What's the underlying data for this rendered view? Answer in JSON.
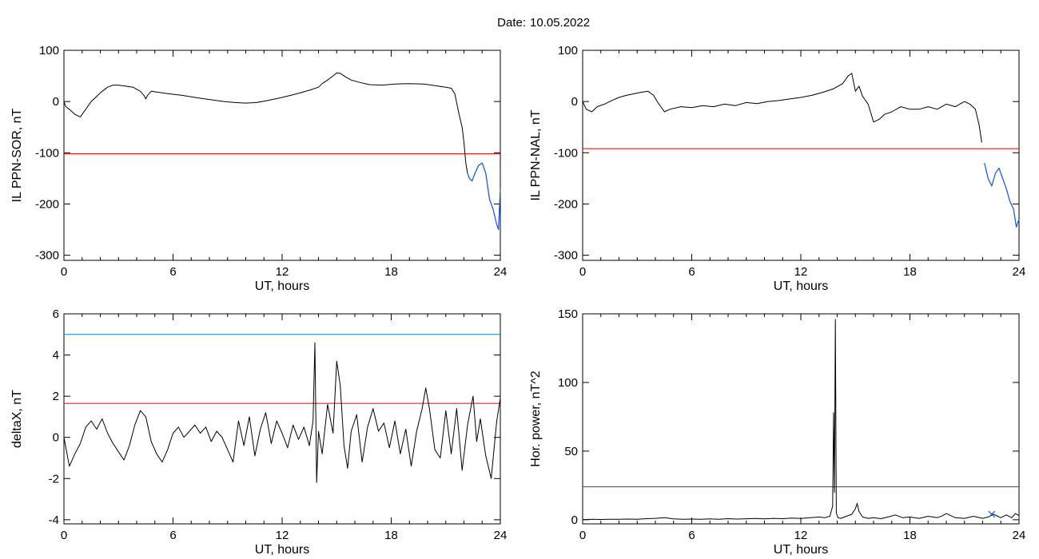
{
  "header": {
    "date_label": "Date:",
    "date_value": "10.05.2022"
  },
  "colors": {
    "trace": "#000000",
    "threshold": "#e00000",
    "highlight": "#1f5fd0",
    "upper_line": "#1f7fa8",
    "marker": "#1f5fd0"
  },
  "chart_data": [
    {
      "type": "line",
      "ylabel": "IL PPN-SOR, nT",
      "xlabel": "UT, hours",
      "xlim": [
        0,
        24
      ],
      "ylim": [
        -310,
        100
      ],
      "xticks": [
        0,
        6,
        12,
        18,
        24
      ],
      "yticks": [
        100,
        0,
        -100,
        -200,
        -300
      ],
      "xtick_labels": [
        "0",
        "6",
        "12",
        "18",
        "24"
      ],
      "ytick_labels": [
        "100",
        "0",
        "-100",
        "-200",
        "-300"
      ],
      "grid": false,
      "hlines": [
        {
          "y": -102,
          "color": "threshold"
        }
      ],
      "series": [
        {
          "x": [
            0,
            0.1,
            0.3,
            0.6,
            0.9,
            1.2,
            1.5,
            1.8,
            2.1,
            2.4,
            2.7,
            3.0,
            3.4,
            3.8,
            4.2,
            4.4,
            4.5,
            4.6,
            4.8,
            5.2,
            5.8,
            6.5,
            7.2,
            8.0,
            8.8,
            9.4,
            10.0,
            10.6,
            11.2,
            12.0,
            12.8,
            13.5,
            14.0,
            14.2,
            14.5,
            14.8,
            15.0,
            15.2,
            15.5,
            15.8,
            16.2,
            16.8,
            17.5,
            18.2,
            19.0,
            19.8,
            20.6,
            21.0,
            21.3,
            21.5,
            21.7,
            21.9,
            22.0,
            22.1,
            22.2,
            22.3,
            22.45,
            22.6,
            22.8,
            23.0,
            23.2,
            23.4,
            23.6,
            23.8,
            23.9,
            24.0
          ],
          "y": [
            0,
            -10,
            -15,
            -25,
            -30,
            -15,
            0,
            10,
            20,
            28,
            32,
            32,
            30,
            28,
            20,
            12,
            5,
            12,
            20,
            18,
            15,
            12,
            8,
            4,
            0,
            -2,
            -3,
            -2,
            2,
            8,
            15,
            22,
            28,
            35,
            42,
            50,
            56,
            55,
            48,
            42,
            38,
            33,
            32,
            34,
            35,
            34,
            30,
            28,
            26,
            15,
            -20,
            -50,
            -80,
            -120,
            -140,
            -150,
            -155,
            -140,
            -125,
            -120,
            -140,
            -190,
            -210,
            -240,
            -250,
            -170
          ],
          "highlight_from_x": 22.2
        }
      ]
    },
    {
      "type": "line",
      "ylabel": "IL PPN-NAL, nT",
      "xlabel": "UT, hours",
      "xlim": [
        0,
        24
      ],
      "ylim": [
        -310,
        100
      ],
      "xticks": [
        0,
        6,
        12,
        18,
        24
      ],
      "yticks": [
        100,
        0,
        -100,
        -200,
        -300
      ],
      "xtick_labels": [
        "0",
        "6",
        "12",
        "18",
        "24"
      ],
      "ytick_labels": [
        "100",
        "0",
        "-100",
        "-200",
        "-300"
      ],
      "grid": false,
      "hlines": [
        {
          "y": -92,
          "color": "threshold"
        }
      ],
      "series": [
        {
          "x": [
            0,
            0.2,
            0.5,
            0.8,
            1.2,
            1.6,
            2.0,
            2.4,
            2.8,
            3.2,
            3.6,
            3.9,
            4.1,
            4.3,
            4.5,
            4.8,
            5.4,
            6.0,
            6.6,
            7.2,
            7.8,
            8.4,
            9.0,
            9.6,
            10.2,
            10.8,
            11.4,
            12.0,
            12.6,
            13.2,
            13.8,
            14.3,
            14.6,
            14.8,
            15.0,
            15.2,
            15.4,
            15.7,
            16.0,
            16.3,
            16.6,
            17.0,
            17.5,
            18.0,
            18.5,
            19.0,
            19.5,
            20.0,
            20.5,
            21.0,
            21.3,
            21.6,
            21.8,
            21.95,
            22.1,
            22.3,
            22.5,
            22.7,
            22.9,
            23.1,
            23.3,
            23.5,
            23.7,
            23.85,
            24.0
          ],
          "y": [
            0,
            -15,
            -20,
            -10,
            -5,
            2,
            8,
            12,
            15,
            18,
            20,
            12,
            0,
            -10,
            -20,
            -15,
            -10,
            -12,
            -8,
            -10,
            -5,
            -8,
            -2,
            -4,
            0,
            2,
            5,
            8,
            12,
            18,
            25,
            35,
            50,
            55,
            20,
            30,
            10,
            -5,
            -40,
            -35,
            -25,
            -20,
            -10,
            -15,
            -15,
            -10,
            -15,
            -5,
            -10,
            0,
            -5,
            -15,
            -45,
            -80,
            -120,
            -150,
            -165,
            -140,
            -130,
            -150,
            -170,
            -195,
            -210,
            -245,
            -230
          ],
          "highlight_from_x": 22.0
        }
      ]
    },
    {
      "type": "line",
      "ylabel": "deltaX, nT",
      "xlabel": "UT, hours",
      "xlim": [
        0,
        24
      ],
      "ylim": [
        -4.2,
        6
      ],
      "xticks": [
        0,
        6,
        12,
        18,
        24
      ],
      "yticks": [
        6,
        4,
        2,
        0,
        -2,
        -4
      ],
      "xtick_labels": [
        "0",
        "6",
        "12",
        "18",
        "24"
      ],
      "ytick_labels": [
        "6",
        "4",
        "2",
        "0",
        "-2",
        "-4"
      ],
      "grid": false,
      "hlines": [
        {
          "y": 5,
          "color": "upper_line"
        },
        {
          "y": 1.65,
          "color": "threshold"
        }
      ],
      "series": [
        {
          "x": [
            0,
            0.3,
            0.6,
            0.9,
            1.2,
            1.5,
            1.8,
            2.1,
            2.4,
            2.7,
            3.0,
            3.3,
            3.6,
            3.9,
            4.2,
            4.5,
            4.8,
            5.1,
            5.4,
            5.7,
            6.0,
            6.3,
            6.6,
            6.9,
            7.2,
            7.5,
            7.8,
            8.1,
            8.4,
            8.7,
            9.0,
            9.3,
            9.6,
            9.9,
            10.2,
            10.5,
            10.8,
            11.1,
            11.4,
            11.7,
            12.0,
            12.3,
            12.6,
            12.9,
            13.2,
            13.5,
            13.7,
            13.8,
            13.9,
            14.0,
            14.2,
            14.5,
            14.8,
            15.0,
            15.2,
            15.4,
            15.6,
            15.8,
            16.1,
            16.4,
            16.7,
            17.0,
            17.3,
            17.6,
            17.9,
            18.2,
            18.5,
            18.8,
            19.1,
            19.4,
            19.7,
            19.9,
            20.1,
            20.4,
            20.7,
            21.0,
            21.3,
            21.6,
            21.9,
            22.2,
            22.5,
            22.7,
            22.9,
            23.2,
            23.5,
            23.8,
            24.0
          ],
          "y": [
            0,
            -1.4,
            -0.8,
            -0.3,
            0.5,
            0.8,
            0.4,
            0.9,
            0.2,
            -0.3,
            -0.7,
            -1.1,
            -0.4,
            0.6,
            1.3,
            1.0,
            -0.2,
            -0.8,
            -1.2,
            -0.6,
            0.2,
            0.5,
            0.0,
            0.3,
            0.6,
            0.2,
            0.5,
            -0.2,
            0.3,
            0.0,
            -0.6,
            -1.2,
            0.8,
            -0.4,
            1.0,
            -0.9,
            0.4,
            1.2,
            -0.3,
            0.8,
            0.2,
            -0.5,
            0.6,
            -0.1,
            0.5,
            -0.4,
            0.8,
            4.6,
            -2.2,
            0.3,
            -0.8,
            1.6,
            0.2,
            3.7,
            2.5,
            -0.4,
            -1.5,
            0.3,
            1.1,
            -1.2,
            0.5,
            1.4,
            0.3,
            0.7,
            -0.5,
            0.8,
            -0.8,
            0.4,
            -1.4,
            0.3,
            1.4,
            2.4,
            1.4,
            -0.6,
            -1.0,
            1.3,
            -0.8,
            1.4,
            -1.6,
            0.6,
            2.0,
            -0.2,
            0.9,
            -0.9,
            -2.0,
            0.8,
            1.9
          ]
        }
      ]
    },
    {
      "type": "line",
      "ylabel": "Hor. power, nT^2",
      "xlabel": "UT, hours",
      "xlim": [
        0,
        24
      ],
      "ylim": [
        -3,
        150
      ],
      "xticks": [
        0,
        6,
        12,
        18,
        24
      ],
      "yticks": [
        150,
        100,
        50,
        0
      ],
      "xtick_labels": [
        "0",
        "6",
        "12",
        "18",
        "24"
      ],
      "ytick_labels": [
        "150",
        "100",
        "50",
        "0"
      ],
      "grid": false,
      "hlines": [
        {
          "y": 24,
          "color": "threshold"
        }
      ],
      "series": [
        {
          "x": [
            0,
            0.5,
            1.0,
            1.5,
            2.0,
            2.5,
            3.0,
            3.5,
            4.0,
            4.5,
            5.0,
            5.5,
            6.0,
            6.5,
            7.0,
            7.5,
            8.0,
            8.5,
            9.0,
            9.5,
            10.0,
            10.5,
            11.0,
            11.5,
            12.0,
            12.5,
            13.0,
            13.3,
            13.6,
            13.75,
            13.8,
            13.85,
            13.9,
            13.95,
            14.0,
            14.05,
            14.2,
            14.5,
            14.8,
            15.0,
            15.1,
            15.2,
            15.4,
            15.7,
            16.0,
            16.4,
            16.8,
            17.2,
            17.6,
            18.0,
            18.5,
            19.0,
            19.5,
            19.8,
            20.0,
            20.5,
            21.0,
            21.5,
            22.0,
            22.3,
            22.6,
            23.0,
            23.3,
            23.6,
            23.8,
            24.0
          ],
          "y": [
            0,
            0.3,
            0.2,
            0.4,
            0.3,
            0.5,
            0.4,
            0.8,
            1.0,
            1.5,
            0.6,
            0.4,
            0.5,
            0.3,
            0.6,
            0.4,
            0.8,
            0.5,
            0.7,
            0.9,
            0.6,
            1.0,
            0.8,
            1.2,
            0.9,
            1.5,
            2.0,
            1.5,
            2.5,
            10,
            78,
            20,
            146,
            5,
            3,
            1.5,
            1.0,
            2.5,
            4.0,
            8.0,
            12.0,
            6.0,
            2.0,
            1.0,
            1.5,
            0.8,
            2.0,
            3.5,
            1.5,
            2.0,
            1.0,
            2.5,
            1.5,
            3.0,
            4.5,
            1.5,
            1.0,
            2.5,
            1.0,
            2.0,
            4.0,
            1.5,
            3.5,
            1.5,
            4.5,
            3.0
          ],
          "marker": {
            "x": 22.5,
            "y": 4,
            "symbol": "x",
            "color": "marker"
          }
        }
      ]
    }
  ]
}
